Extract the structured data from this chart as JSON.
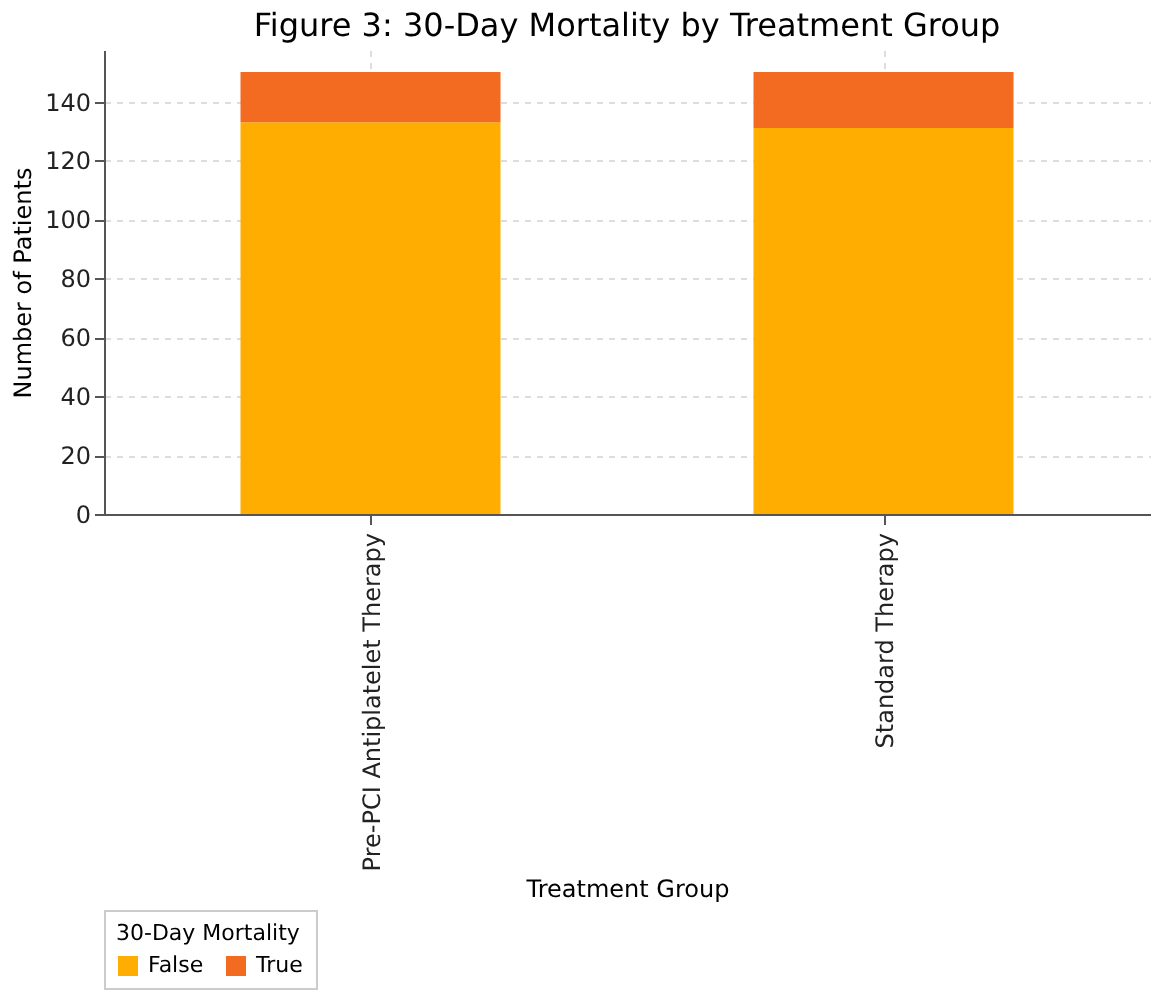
{
  "chart_data": {
    "type": "bar",
    "title": "Figure 3: 30-Day Mortality by Treatment Group",
    "xlabel": "Treatment Group",
    "ylabel": "Number of Patients",
    "legend_title": "30-Day Mortality",
    "categories": [
      "Pre-PCI Antiplatelet Therapy",
      "Standard Therapy"
    ],
    "series": [
      {
        "name": "False",
        "color": "#ffad00",
        "values": [
          133,
          131
        ]
      },
      {
        "name": "True",
        "color": "#f26b21",
        "values": [
          17,
          19
        ]
      }
    ],
    "stacked": true,
    "ylim": [
      0,
      157.5
    ],
    "yticks": [
      0,
      20,
      40,
      60,
      80,
      100,
      120,
      140
    ],
    "grid": true,
    "legend": "bottom"
  }
}
